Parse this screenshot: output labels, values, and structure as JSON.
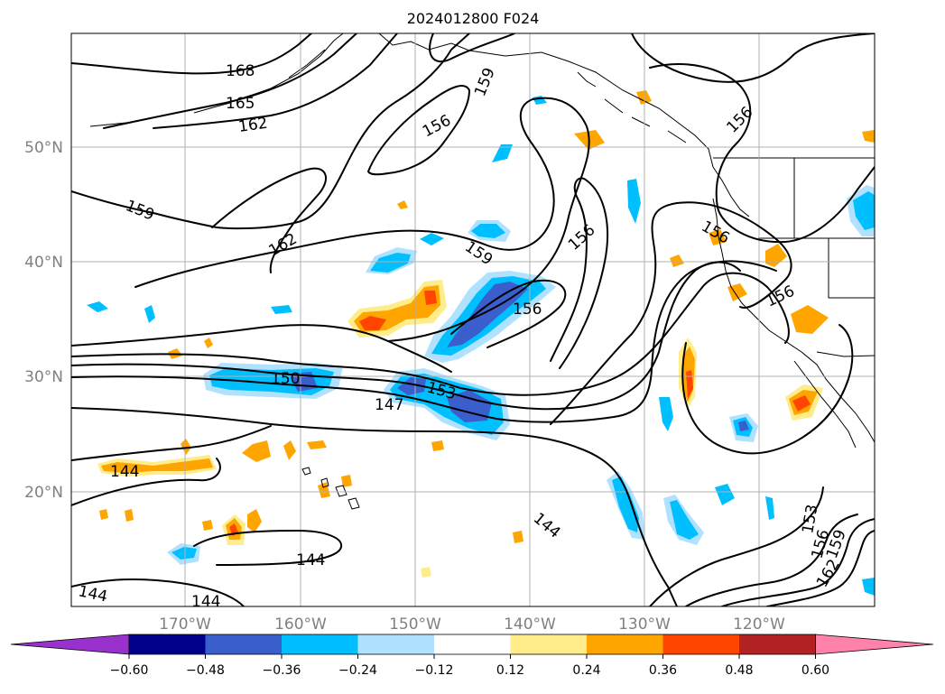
{
  "title": "2024012800 F024",
  "lat_labels": [
    "50°N",
    "40°N",
    "30°N",
    "20°N"
  ],
  "lon_labels": [
    "170°W",
    "160°W",
    "150°W",
    "140°W",
    "130°W",
    "120°W"
  ],
  "contour_labels": [
    "168",
    "165",
    "162",
    "159",
    "162",
    "156",
    "159",
    "156",
    "159",
    "156",
    "156",
    "156",
    "156",
    "150",
    "153",
    "147",
    "144",
    "144",
    "144",
    "144",
    "144",
    "153",
    "156",
    "159",
    "162"
  ],
  "colorbar": {
    "colors": [
      "#9932cc",
      "#00008b",
      "#3a5fcd",
      "#00bfff",
      "#b0e2ff",
      "#ffffff",
      "#ffec8b",
      "#ffa500",
      "#ff4500",
      "#b22222",
      "#ff82ab"
    ],
    "tick_labels": [
      "−0.60",
      "−0.48",
      "−0.36",
      "−0.24",
      "−0.12",
      "0.12",
      "0.24",
      "0.36",
      "0.48",
      "0.60"
    ]
  },
  "colors": {
    "contour": "#000000",
    "grid": "#b0b0b0",
    "label_gray": "#808080"
  }
}
